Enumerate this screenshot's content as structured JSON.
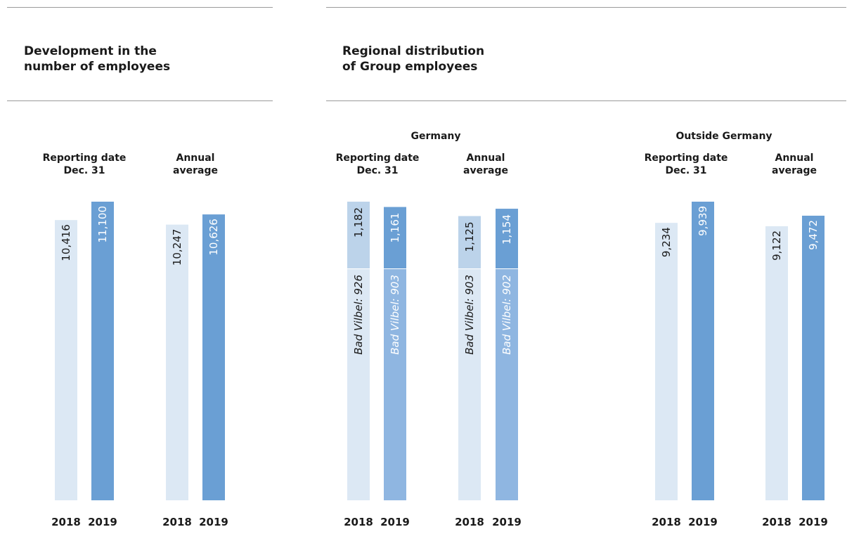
{
  "panels": [
    {
      "title": "Development in the\nnumber of employees"
    },
    {
      "title": "Regional distribution\nof Group employees"
    }
  ],
  "colors": {
    "bar_2018": "#dce8f4",
    "bar_2019": "#6a9fd4",
    "bar_2018_top": "#bcd3ea",
    "bar_2019_bottom": "#8fb6e1",
    "rule": "#9a9a9a"
  },
  "chart_data": [
    {
      "type": "bar",
      "group_label": "",
      "series_years": [
        "2018",
        "2019"
      ],
      "columns": [
        {
          "label": "Reporting date\nDec. 31",
          "values": [
            10416,
            11100
          ],
          "value_labels": [
            "10,416",
            "11,100"
          ]
        },
        {
          "label": "Annual\naverage",
          "values": [
            10247,
            10626
          ],
          "value_labels": [
            "10,247",
            "10,626"
          ]
        }
      ],
      "ylim": [
        0,
        11100
      ]
    },
    {
      "type": "bar",
      "stacked": true,
      "group_label": "Germany",
      "series_years": [
        "2018",
        "2019"
      ],
      "columns": [
        {
          "label": "Reporting date\nDec. 31",
          "totals": [
            "1,182",
            "1,161"
          ],
          "sub_labels": [
            "Bad Vilbel: 926",
            "Bad Vilbel: 903"
          ],
          "values_bottom": [
            926,
            903
          ],
          "values_total": [
            1182,
            1161
          ]
        },
        {
          "label": "Annual\naverage",
          "totals": [
            "1,125",
            "1,154"
          ],
          "sub_labels": [
            "Bad Vilbel: 903",
            "Bad Vilbel: 902"
          ],
          "values_bottom": [
            903,
            902
          ],
          "values_total": [
            1125,
            1154
          ]
        }
      ],
      "ylim": [
        0,
        1182
      ]
    },
    {
      "type": "bar",
      "group_label": "Outside Germany",
      "series_years": [
        "2018",
        "2019"
      ],
      "columns": [
        {
          "label": "Reporting date\nDec. 31",
          "values": [
            9234,
            9939
          ],
          "value_labels": [
            "9,234",
            "9,939"
          ]
        },
        {
          "label": "Annual\naverage",
          "values": [
            9122,
            9472
          ],
          "value_labels": [
            "9,122",
            "9,472"
          ]
        }
      ],
      "ylim": [
        0,
        9939
      ]
    }
  ]
}
